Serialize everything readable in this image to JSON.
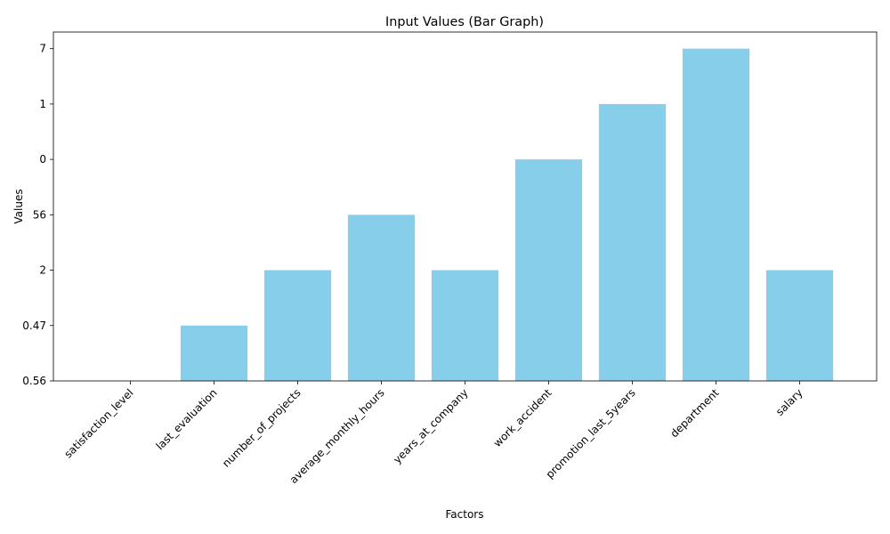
{
  "chart_data": {
    "type": "bar",
    "title": "Input Values (Bar Graph)",
    "xlabel": "Factors",
    "ylabel": "Values",
    "categories": [
      "satisfaction_level",
      "last_evaluation",
      "number_of_projects",
      "average_monthly_hours",
      "years_at_company",
      "work_accident",
      "promotion_last_5years",
      "department",
      "salary"
    ],
    "values": [
      0,
      1,
      2,
      3,
      2,
      4,
      5,
      6,
      2
    ],
    "color": "#87ceeb",
    "ylim": [
      0,
      6.3
    ],
    "yticks": [
      {
        "value": 0,
        "label": "0.56"
      },
      {
        "value": 1,
        "label": "0.47"
      },
      {
        "value": 2,
        "label": "2"
      },
      {
        "value": 3,
        "label": "56"
      },
      {
        "value": 4,
        "label": "0"
      },
      {
        "value": 5,
        "label": "1"
      },
      {
        "value": 6,
        "label": "7"
      }
    ],
    "grid": false
  }
}
